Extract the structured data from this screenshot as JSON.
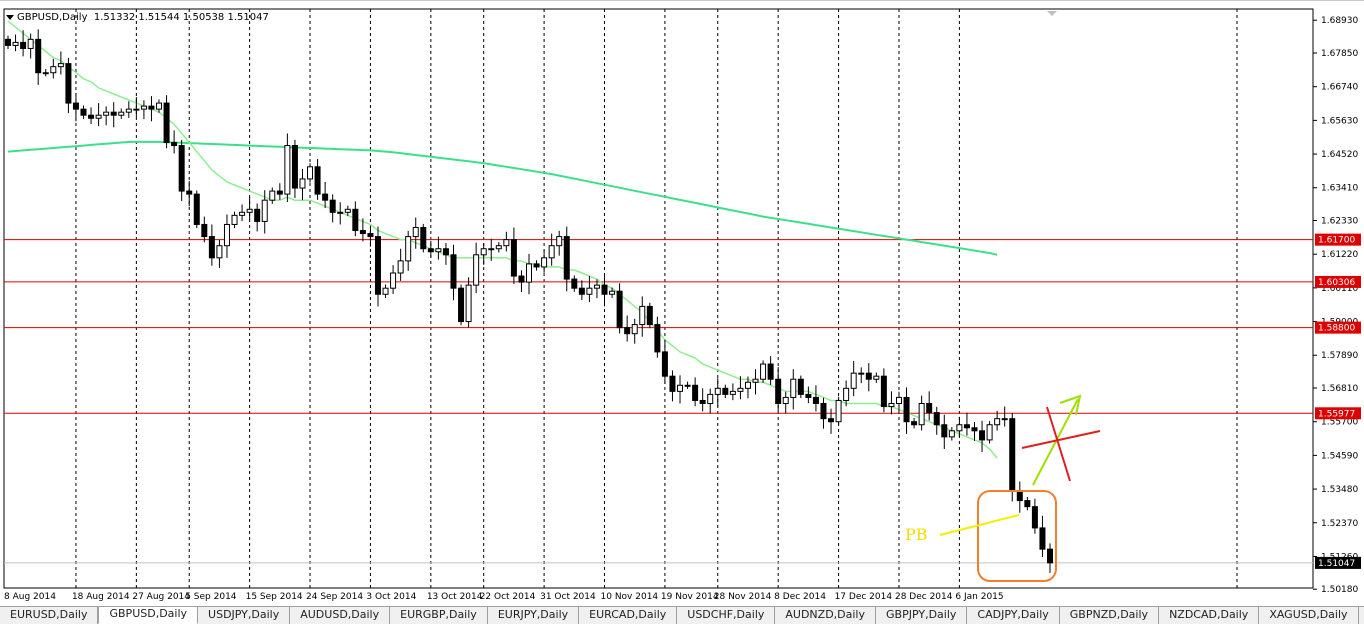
{
  "header": {
    "symbol": "GBPUSD,Daily",
    "ohlc": "1.51332 1.51544 1.50538 1.51047"
  },
  "tabs": [
    {
      "label": "EURUSD,Daily",
      "active": false
    },
    {
      "label": "GBPUSD,Daily",
      "active": true
    },
    {
      "label": "USDJPY,Daily",
      "active": false
    },
    {
      "label": "AUDUSD,Daily",
      "active": false
    },
    {
      "label": "EURGBP,Daily",
      "active": false
    },
    {
      "label": "EURJPY,Daily",
      "active": false
    },
    {
      "label": "EURCAD,Daily",
      "active": false
    },
    {
      "label": "USDCHF,Daily",
      "active": false
    },
    {
      "label": "AUDNZD,Daily",
      "active": false
    },
    {
      "label": "GBPJPY,Daily",
      "active": false
    },
    {
      "label": "CADJPY,Daily",
      "active": false
    },
    {
      "label": "GBPNZD,Daily",
      "active": false
    },
    {
      "label": "NZDCAD,Daily",
      "active": false
    },
    {
      "label": "XAGUSD,Daily",
      "active": false
    },
    {
      "label": "XAUUSD,Daily",
      "active": false
    }
  ],
  "chart_data": {
    "type": "candlestick",
    "ylim": [
      1.5022,
      1.693
    ],
    "y_ticks": [
      "1.68930",
      "1.67850",
      "1.66740",
      "1.65630",
      "1.64520",
      "1.63410",
      "1.62330",
      "1.61220",
      "1.60110",
      "1.59000",
      "1.57890",
      "1.56810",
      "1.55700",
      "1.54590",
      "1.53480",
      "1.52370",
      "1.51260",
      "1.50180"
    ],
    "x_labels": [
      "8 Aug 2014",
      "18 Aug 2014",
      "27 Aug 2014",
      "5 Sep 2014",
      "15 Sep 2014",
      "24 Sep 2014",
      "3 Oct 2014",
      "13 Oct 2014",
      "22 Oct 2014",
      "31 Oct 2014",
      "10 Nov 2014",
      "19 Nov 2014",
      "28 Nov 2014",
      "8 Dec 2014",
      "17 Dec 2014",
      "28 Dec 2014",
      "6 Jan 2015"
    ],
    "horizontal_levels": [
      {
        "label": "1.61700",
        "value": 1.617,
        "color": "#dd0000"
      },
      {
        "label": "1.60306",
        "value": 1.60306,
        "color": "#dd0000"
      },
      {
        "label": "1.58800",
        "value": 1.588,
        "color": "#dd0000"
      },
      {
        "label": "1.55977",
        "value": 1.55977,
        "color": "#dd0000"
      }
    ],
    "current_price": {
      "label": "1.51047",
      "value": 1.51047
    },
    "closes": [
      1.681,
      1.682,
      1.68,
      1.683,
      1.672,
      1.672,
      1.674,
      1.675,
      1.662,
      1.66,
      1.658,
      1.657,
      1.658,
      1.659,
      1.658,
      1.659,
      1.66,
      1.66,
      1.661,
      1.66,
      1.662,
      1.649,
      1.648,
      1.633,
      1.632,
      1.622,
      1.618,
      1.611,
      1.615,
      1.622,
      1.625,
      1.626,
      1.627,
      1.623,
      1.63,
      1.633,
      1.632,
      1.648,
      1.634,
      1.637,
      1.641,
      1.632,
      1.63,
      1.626,
      1.626,
      1.627,
      1.62,
      1.619,
      1.618,
      1.599,
      1.601,
      1.606,
      1.61,
      1.618,
      1.621,
      1.614,
      1.613,
      1.614,
      1.612,
      1.601,
      1.59,
      1.602,
      1.612,
      1.614,
      1.614,
      1.615,
      1.617,
      1.605,
      1.603,
      1.609,
      1.608,
      1.611,
      1.615,
      1.618,
      1.604,
      1.601,
      1.599,
      1.601,
      1.602,
      1.599,
      1.6,
      1.588,
      1.586,
      1.589,
      1.595,
      1.589,
      1.58,
      1.572,
      1.567,
      1.569,
      1.569,
      1.564,
      1.563,
      1.566,
      1.568,
      1.566,
      1.567,
      1.568,
      1.57,
      1.571,
      1.576,
      1.571,
      1.563,
      1.565,
      1.571,
      1.566,
      1.565,
      1.563,
      1.558,
      1.557,
      1.564,
      1.568,
      1.573,
      1.573,
      1.571,
      1.572,
      1.562,
      1.563,
      1.565,
      1.557,
      1.556,
      1.563,
      1.56,
      1.556,
      1.552,
      1.554,
      1.556,
      1.555,
      1.554,
      1.551,
      1.556,
      1.558,
      1.558,
      1.534,
      1.531,
      1.529,
      1.522,
      1.515,
      1.5105
    ],
    "sma_fast": [
      1.689,
      1.687,
      1.685,
      1.683,
      1.681,
      1.679,
      1.677,
      1.676,
      1.674,
      1.672,
      1.67,
      1.669,
      1.667,
      1.666,
      1.665,
      1.664,
      1.663,
      1.662,
      1.661,
      1.66,
      1.659,
      1.657,
      1.655,
      1.652,
      1.649,
      1.646,
      1.643,
      1.64,
      1.638,
      1.636,
      1.635,
      1.634,
      1.633,
      1.632,
      1.631,
      1.63,
      1.63,
      1.631,
      1.63,
      1.63,
      1.63,
      1.629,
      1.628,
      1.627,
      1.626,
      1.625,
      1.624,
      1.623,
      1.622,
      1.62,
      1.619,
      1.618,
      1.617,
      1.617,
      1.616,
      1.615,
      1.614,
      1.613,
      1.612,
      1.611,
      1.611,
      1.611,
      1.611,
      1.611,
      1.611,
      1.611,
      1.611,
      1.61,
      1.61,
      1.609,
      1.609,
      1.608,
      1.608,
      1.608,
      1.607,
      1.607,
      1.606,
      1.605,
      1.604,
      1.602,
      1.601,
      1.599,
      1.597,
      1.595,
      1.593,
      1.59,
      1.587,
      1.584,
      1.582,
      1.58,
      1.579,
      1.578,
      1.576,
      1.575,
      1.574,
      1.573,
      1.572,
      1.571,
      1.571,
      1.57,
      1.57,
      1.569,
      1.568,
      1.567,
      1.567,
      1.567,
      1.567,
      1.566,
      1.565,
      1.564,
      1.564,
      1.563,
      1.563,
      1.563,
      1.563,
      1.563,
      1.562,
      1.562,
      1.561,
      1.56,
      1.559,
      1.558,
      1.557,
      1.556,
      1.555,
      1.554,
      1.553,
      1.552,
      1.551,
      1.55,
      1.548,
      1.545
    ],
    "sma_slow": [
      1.646,
      1.6462,
      1.6464,
      1.6466,
      1.6468,
      1.647,
      1.6472,
      1.6474,
      1.6476,
      1.6478,
      1.648,
      1.6482,
      1.6484,
      1.6486,
      1.6488,
      1.649,
      1.6492,
      1.6492,
      1.6492,
      1.6492,
      1.6492,
      1.6491,
      1.649,
      1.6489,
      1.6488,
      1.6487,
      1.6486,
      1.6485,
      1.6484,
      1.6483,
      1.6482,
      1.6481,
      1.648,
      1.6479,
      1.6478,
      1.6477,
      1.6476,
      1.6475,
      1.6474,
      1.6473,
      1.6472,
      1.6471,
      1.647,
      1.6469,
      1.6468,
      1.6467,
      1.6466,
      1.6465,
      1.6464,
      1.6462,
      1.646,
      1.6458,
      1.6455,
      1.6452,
      1.6449,
      1.6446,
      1.6443,
      1.644,
      1.6437,
      1.6434,
      1.6431,
      1.6428,
      1.6425,
      1.6422,
      1.6418,
      1.6414,
      1.641,
      1.6406,
      1.6402,
      1.6398,
      1.6394,
      1.639,
      1.6386,
      1.6381,
      1.6376,
      1.6371,
      1.6366,
      1.6361,
      1.6356,
      1.6351,
      1.6346,
      1.6341,
      1.6336,
      1.6331,
      1.6326,
      1.6321,
      1.6316,
      1.6311,
      1.6306,
      1.6301,
      1.6296,
      1.6291,
      1.6286,
      1.6281,
      1.6276,
      1.6271,
      1.6266,
      1.6261,
      1.6256,
      1.6251,
      1.6246,
      1.6242,
      1.6238,
      1.6234,
      1.623,
      1.6226,
      1.6222,
      1.6218,
      1.6214,
      1.621,
      1.6206,
      1.6202,
      1.6198,
      1.6194,
      1.619,
      1.6186,
      1.6182,
      1.6178,
      1.6174,
      1.617,
      1.6166,
      1.6162,
      1.6158,
      1.6154,
      1.615,
      1.6146,
      1.6142,
      1.6138,
      1.6134,
      1.613,
      1.6126,
      1.612
    ],
    "annotations": {
      "pb_label": "PB"
    }
  }
}
